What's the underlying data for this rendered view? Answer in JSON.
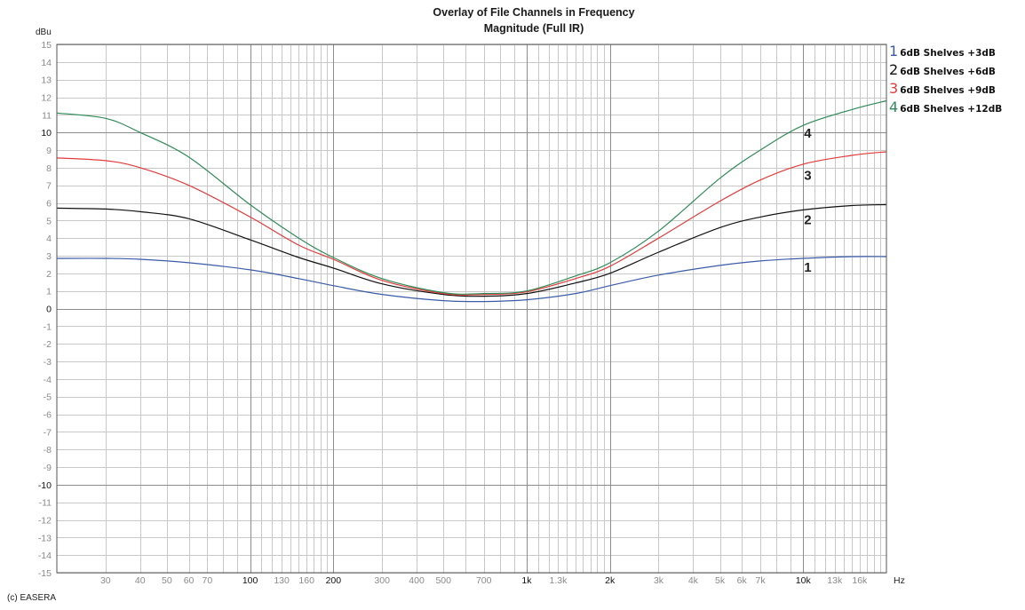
{
  "chart_data": {
    "type": "line",
    "title": "Overlay of File Channels in Frequency",
    "subtitle": "Magnitude (Full IR)",
    "xlabel": "Hz",
    "ylabel": "dBu",
    "xscale": "log",
    "xlim": [
      20,
      20000
    ],
    "ylim": [
      -15,
      15
    ],
    "grid": true,
    "legend_position": "right",
    "x_tick_labels": [
      {
        "f": 30,
        "label": "30",
        "major": false
      },
      {
        "f": 40,
        "label": "40",
        "major": false
      },
      {
        "f": 50,
        "label": "50",
        "major": false
      },
      {
        "f": 60,
        "label": "60",
        "major": false
      },
      {
        "f": 70,
        "label": "70",
        "major": false
      },
      {
        "f": 100,
        "label": "100",
        "major": true
      },
      {
        "f": 130,
        "label": "130",
        "major": false
      },
      {
        "f": 160,
        "label": "160",
        "major": false
      },
      {
        "f": 200,
        "label": "200",
        "major": true
      },
      {
        "f": 300,
        "label": "300",
        "major": false
      },
      {
        "f": 400,
        "label": "400",
        "major": false
      },
      {
        "f": 500,
        "label": "500",
        "major": false
      },
      {
        "f": 700,
        "label": "700",
        "major": false
      },
      {
        "f": 1000,
        "label": "1k",
        "major": true
      },
      {
        "f": 1300,
        "label": "1.3k",
        "major": false
      },
      {
        "f": 2000,
        "label": "2k",
        "major": true
      },
      {
        "f": 3000,
        "label": "3k",
        "major": false
      },
      {
        "f": 4000,
        "label": "4k",
        "major": false
      },
      {
        "f": 5000,
        "label": "5k",
        "major": false
      },
      {
        "f": 6000,
        "label": "6k",
        "major": false
      },
      {
        "f": 7000,
        "label": "7k",
        "major": false
      },
      {
        "f": 10000,
        "label": "10k",
        "major": true
      },
      {
        "f": 13000,
        "label": "13k",
        "major": false
      },
      {
        "f": 16000,
        "label": "16k",
        "major": false
      }
    ],
    "y_ticks": [
      15,
      14,
      13,
      12,
      11,
      10,
      9,
      8,
      7,
      6,
      5,
      4,
      3,
      2,
      1,
      0,
      -1,
      -2,
      -3,
      -4,
      -5,
      -6,
      -7,
      -8,
      -9,
      -10,
      -11,
      -12,
      -13,
      -14,
      -15
    ],
    "y_major_ticks": [
      10,
      0,
      -10
    ],
    "x": [
      20,
      30,
      40,
      60,
      100,
      150,
      200,
      300,
      500,
      700,
      1000,
      1500,
      2000,
      3000,
      5000,
      7000,
      10000,
      15000,
      20000
    ],
    "series": [
      {
        "id": "1",
        "name": "6dB Shelves +3dB",
        "color": "#3b5ba8",
        "values": [
          2.85,
          2.85,
          2.8,
          2.6,
          2.2,
          1.7,
          1.3,
          0.8,
          0.45,
          0.4,
          0.5,
          0.85,
          1.3,
          1.9,
          2.45,
          2.7,
          2.85,
          2.95,
          2.95
        ],
        "label_pos": {
          "f": 10000,
          "db": 2.1
        }
      },
      {
        "id": "2",
        "name": "6dB Shelves +6dB",
        "color": "#111111",
        "values": [
          5.7,
          5.65,
          5.5,
          5.1,
          3.9,
          2.9,
          2.3,
          1.4,
          0.8,
          0.7,
          0.85,
          1.45,
          2.0,
          3.2,
          4.6,
          5.2,
          5.6,
          5.85,
          5.9
        ],
        "label_pos": {
          "f": 10000,
          "db": 4.8
        }
      },
      {
        "id": "3",
        "name": "6dB Shelves +9dB",
        "color": "#e23b3b",
        "values": [
          8.55,
          8.4,
          8.0,
          7.0,
          5.2,
          3.6,
          2.8,
          1.6,
          0.85,
          0.8,
          0.95,
          1.7,
          2.4,
          4.0,
          6.1,
          7.3,
          8.2,
          8.7,
          8.9
        ],
        "label_pos": {
          "f": 10000,
          "db": 7.3
        }
      },
      {
        "id": "4",
        "name": "6dB Shelves +12dB",
        "color": "#2e8b57",
        "values": [
          11.1,
          10.8,
          10.0,
          8.6,
          5.9,
          4.0,
          2.9,
          1.7,
          0.9,
          0.85,
          1.0,
          1.85,
          2.6,
          4.4,
          7.4,
          9.0,
          10.4,
          11.3,
          11.8
        ],
        "label_pos": {
          "f": 10000,
          "db": 9.7
        }
      }
    ]
  },
  "header": {
    "title": "Overlay of File Channels in Frequency",
    "subtitle": "Magnitude (Full IR)",
    "y_unit": "dBu"
  },
  "footer": {
    "copyright": "(c) EASERA"
  },
  "legend": {
    "items": [
      {
        "num": "1",
        "label": "6dB Shelves +3dB",
        "color": "#3b5ba8"
      },
      {
        "num": "2",
        "label": "6dB Shelves +6dB",
        "color": "#111111"
      },
      {
        "num": "3",
        "label": "6dB Shelves +9dB",
        "color": "#e23b3b"
      },
      {
        "num": "4",
        "label": "6dB Shelves +12dB",
        "color": "#2e8b57"
      }
    ]
  },
  "colors": {
    "grid": "#c8c8c8",
    "grid_major": "#8c8c8c",
    "frame": "#555555",
    "tick_minor": "#8a8a8a",
    "tick_major": "#111111"
  }
}
